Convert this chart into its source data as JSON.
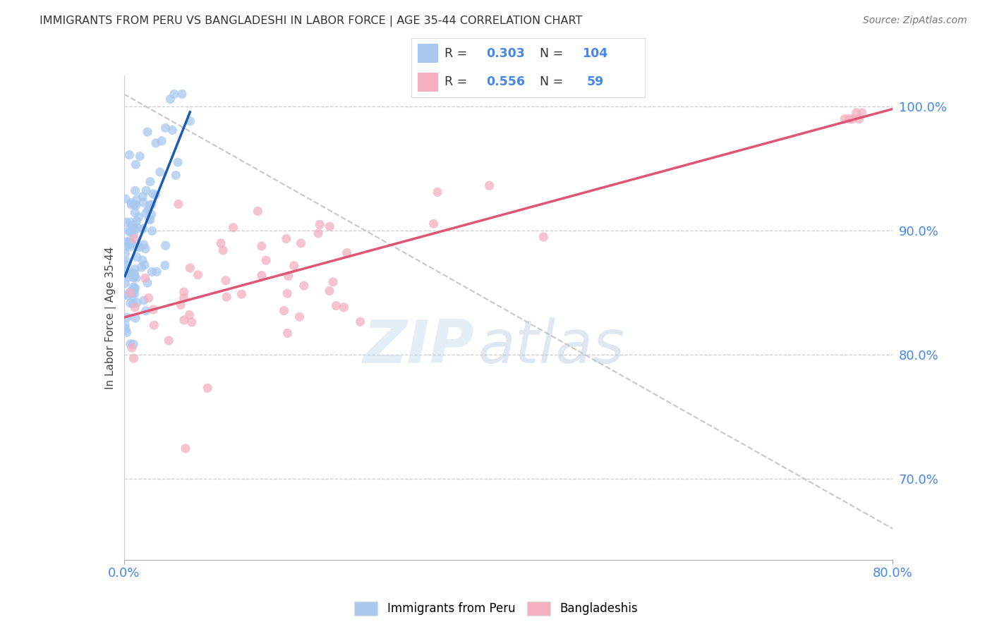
{
  "title": "IMMIGRANTS FROM PERU VS BANGLADESHI IN LABOR FORCE | AGE 35-44 CORRELATION CHART",
  "source": "Source: ZipAtlas.com",
  "ylabel": "In Labor Force | Age 35-44",
  "xlim": [
    0.0,
    0.8
  ],
  "ylim": [
    0.635,
    1.025
  ],
  "ytick_positions": [
    0.7,
    0.8,
    0.9,
    1.0
  ],
  "ytick_labels": [
    "70.0%",
    "80.0%",
    "90.0%",
    "100.0%"
  ],
  "xtick_positions": [
    0.0,
    0.8
  ],
  "xtick_labels": [
    "0.0%",
    "80.0%"
  ],
  "color_peru": "#a8c8f0",
  "color_bangladesh": "#f4b0c0",
  "color_peru_line": "#1a5cb5",
  "color_bangladesh_line": "#e05575",
  "color_ref_line": "#c8c8c8",
  "tick_color": "#4488ee",
  "background_color": "#ffffff",
  "R_peru": "0.303",
  "N_peru": "104",
  "R_bang": "0.556",
  "N_bang": "59",
  "legend_label1": "Immigrants from Peru",
  "legend_label2": "Bangladeshis",
  "watermark_zip": "ZIP",
  "watermark_atlas": "atlas"
}
